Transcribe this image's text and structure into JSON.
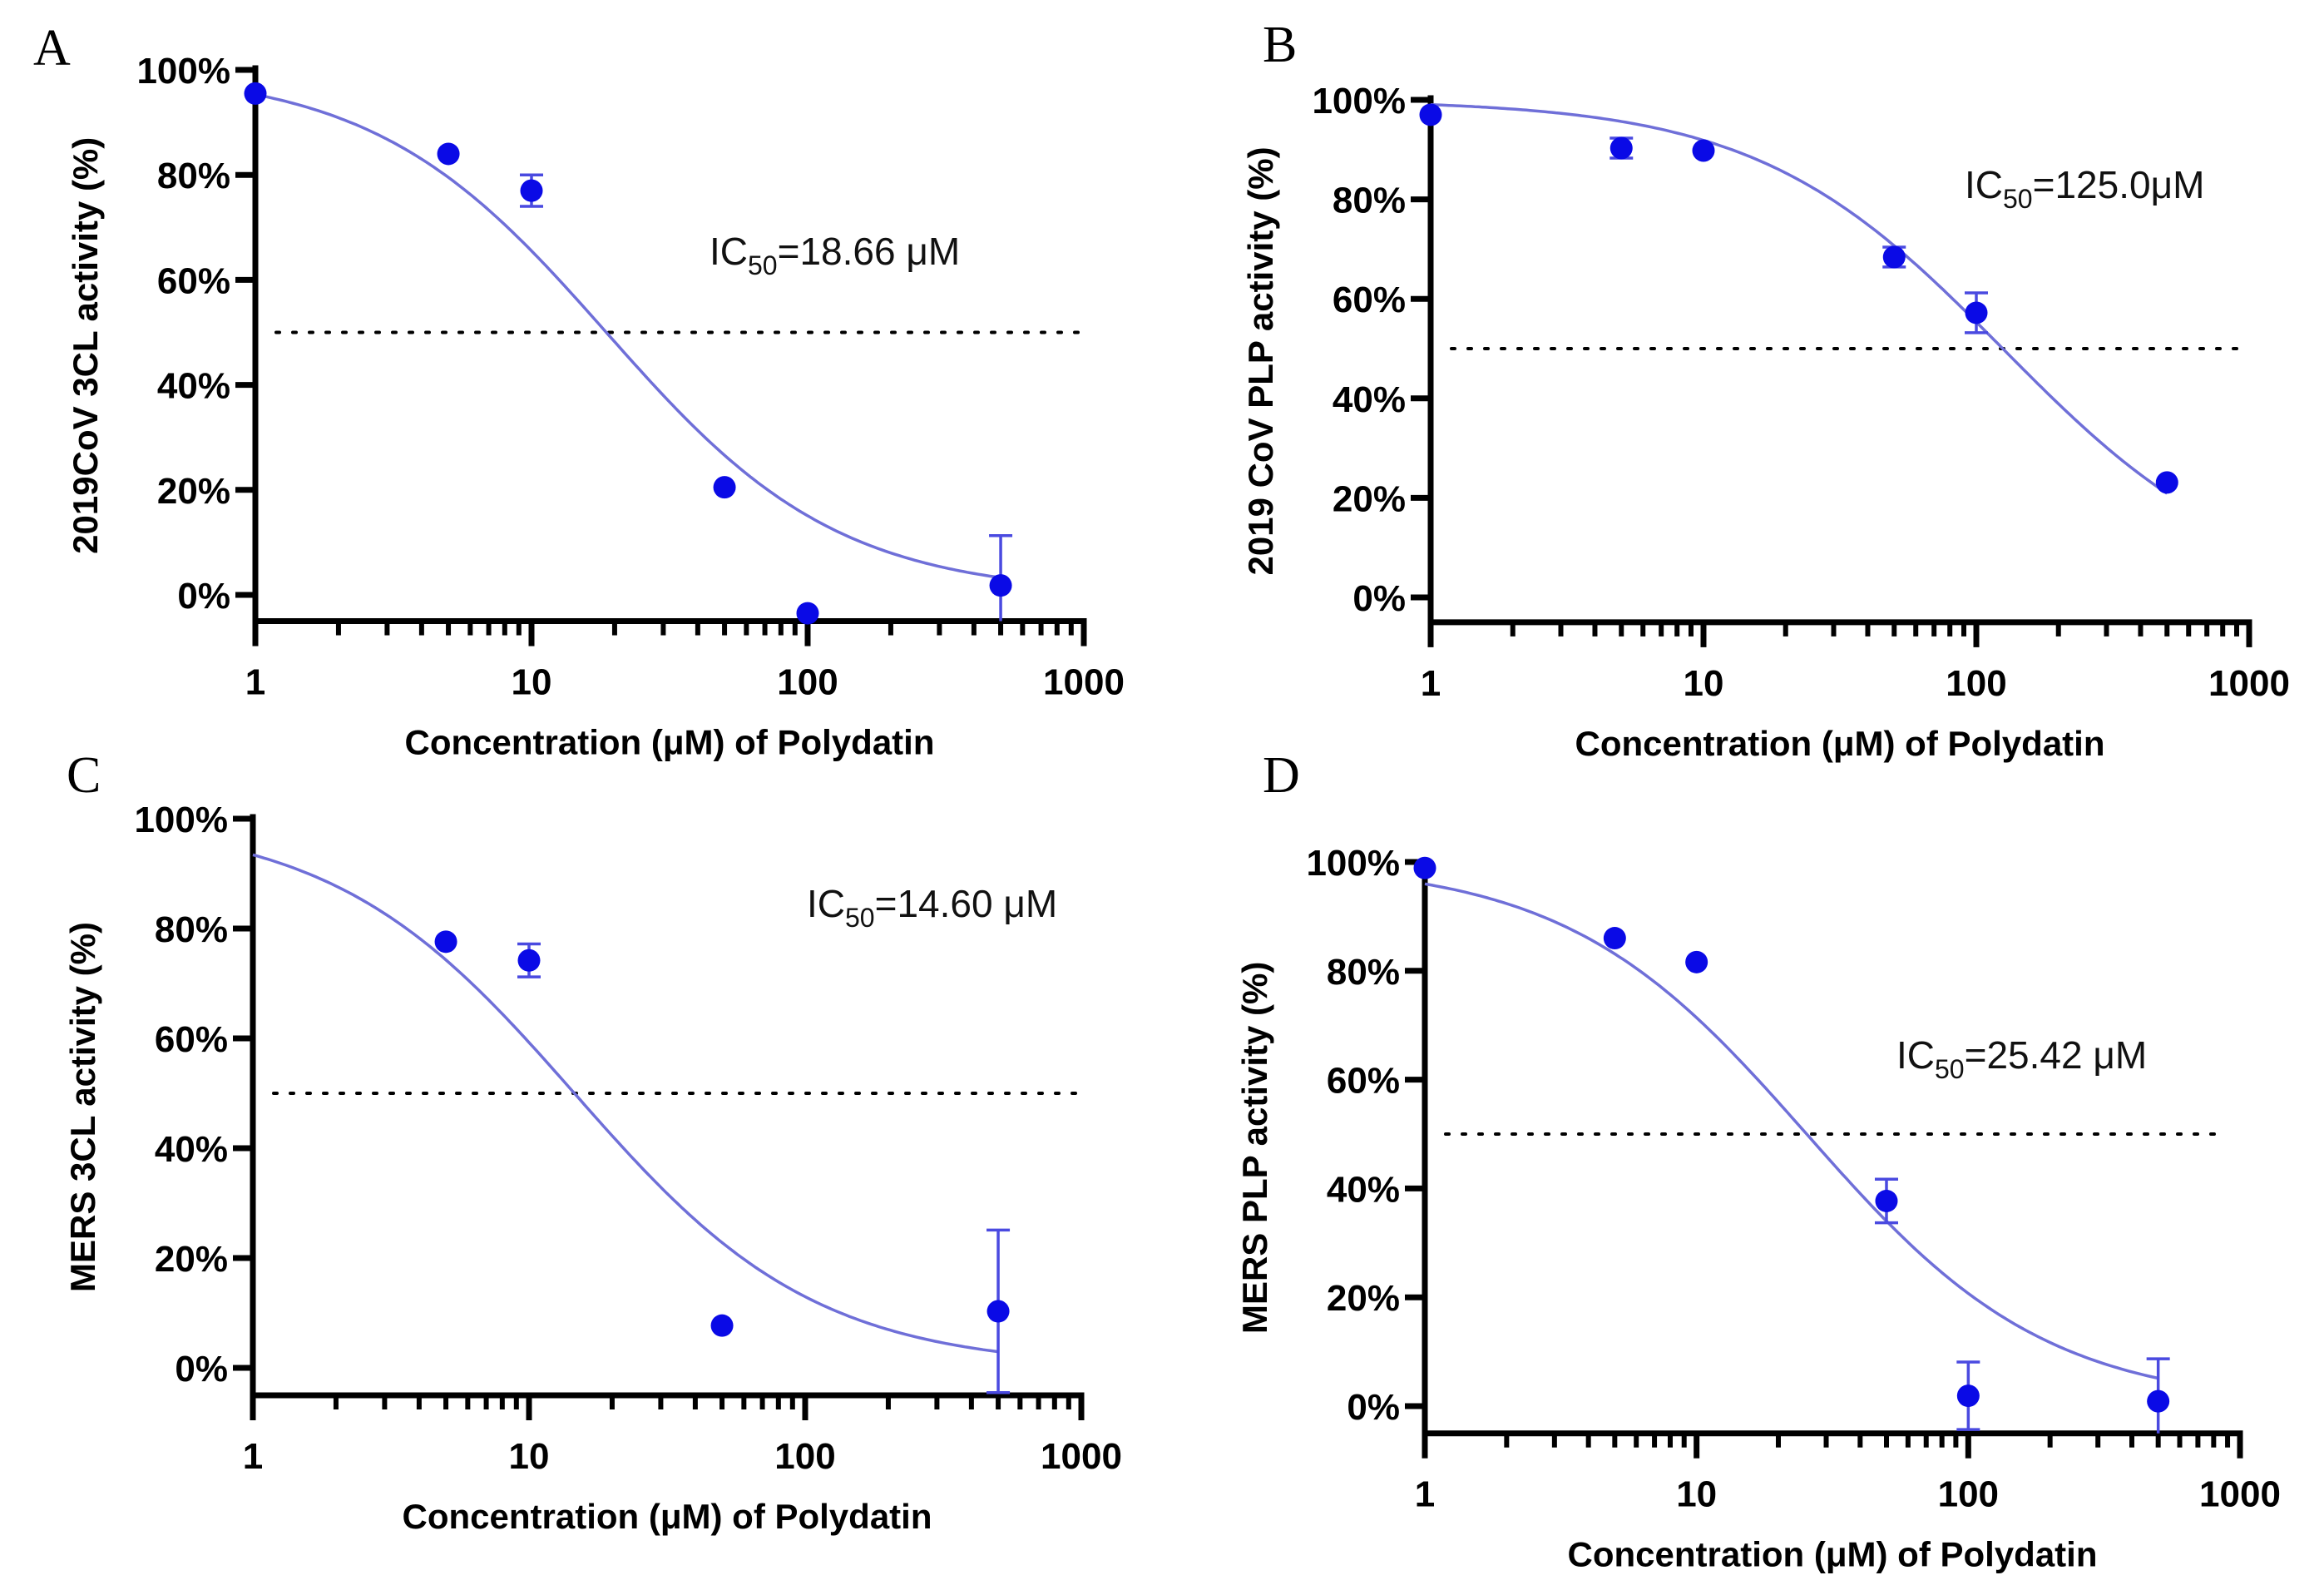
{
  "figure": {
    "panels": [
      {
        "id": "A",
        "letter": "A"
      },
      {
        "id": "B",
        "letter": "B"
      },
      {
        "id": "C",
        "letter": "C"
      },
      {
        "id": "D",
        "letter": "D"
      }
    ]
  },
  "colors": {
    "points": "#0a0ae6",
    "error_bars": "#4a4ae0",
    "fit_curve": "#6f6fd8",
    "axes": "#000000",
    "reference_line": "#000000"
  },
  "chart_data": [
    {
      "panel": "A",
      "type": "scatter",
      "title": "",
      "xlabel": "Concentration (μM) of Polydatin",
      "ylabel": "2019CoV 3CL activity (%)",
      "xscale": "log",
      "xlim": [
        1,
        1000
      ],
      "ylim": [
        -5,
        100
      ],
      "x_ticks": [
        1,
        10,
        100,
        1000
      ],
      "x_tick_labels": [
        "1",
        "10",
        "100",
        "1000"
      ],
      "y_ticks": [
        0,
        20,
        40,
        60,
        80,
        100
      ],
      "y_tick_labels": [
        "0%",
        "20%",
        "40%",
        "60%",
        "80%",
        "100%"
      ],
      "grid": false,
      "reference_line_y": 50,
      "annotation": {
        "prefix": "IC",
        "subscript": "50",
        "suffix": "=18.66 μM"
      },
      "ic50": 18.66,
      "fit": {
        "top": 100,
        "bottom": 0,
        "ic50": 18.66,
        "hill_slope": 1.03,
        "x_range": [
          1,
          500
        ]
      },
      "points": [
        {
          "x": 1,
          "y": 95.5,
          "err": 0
        },
        {
          "x": 5,
          "y": 84,
          "err": 0
        },
        {
          "x": 10,
          "y": 77,
          "err": 3
        },
        {
          "x": 50,
          "y": 20.5,
          "err": 0
        },
        {
          "x": 100,
          "y": -3.5,
          "err": 0
        },
        {
          "x": 500,
          "y": 1.8,
          "err": 9.5
        }
      ]
    },
    {
      "panel": "B",
      "type": "scatter",
      "title": "",
      "xlabel": "Concentration (μM) of Polydatin",
      "ylabel": "2019 CoV PLP activity (%)",
      "xscale": "log",
      "xlim": [
        1,
        1000
      ],
      "ylim": [
        -5,
        100
      ],
      "x_ticks": [
        1,
        10,
        100,
        1000
      ],
      "x_tick_labels": [
        "1",
        "10",
        "100",
        "1000"
      ],
      "y_ticks": [
        0,
        20,
        40,
        60,
        80,
        100
      ],
      "y_tick_labels": [
        "0%",
        "20%",
        "40%",
        "60%",
        "80%",
        "100%"
      ],
      "grid": false,
      "reference_line_y": 50,
      "annotation": {
        "prefix": "IC",
        "subscript": "50",
        "suffix": "=125.0μM"
      },
      "ic50": 125.0,
      "fit": {
        "top": 100,
        "bottom": 0,
        "ic50": 125.0,
        "hill_slope": 0.96,
        "x_range": [
          1,
          500
        ]
      },
      "points": [
        {
          "x": 1,
          "y": 97,
          "err": 0
        },
        {
          "x": 5,
          "y": 90.3,
          "err": 2
        },
        {
          "x": 10,
          "y": 89.8,
          "err": 0
        },
        {
          "x": 50,
          "y": 68.4,
          "err": 2
        },
        {
          "x": 100,
          "y": 57.2,
          "err": 4
        },
        {
          "x": 500,
          "y": 23.1,
          "err": 0
        }
      ]
    },
    {
      "panel": "C",
      "type": "scatter",
      "title": "",
      "xlabel": "Concentration (μM) of Polydatin",
      "ylabel": "MERS 3CL activity (%)",
      "xscale": "log",
      "xlim": [
        1,
        1000
      ],
      "ylim": [
        -5,
        100
      ],
      "x_ticks": [
        1,
        10,
        100,
        1000
      ],
      "x_tick_labels": [
        "1",
        "10",
        "100",
        "1000"
      ],
      "y_ticks": [
        0,
        20,
        40,
        60,
        80,
        100
      ],
      "y_tick_labels": [
        "0%",
        "20%",
        "40%",
        "60%",
        "80%",
        "100%"
      ],
      "grid": false,
      "reference_line_y": 50,
      "annotation": {
        "prefix": "IC",
        "subscript": "50",
        "suffix": "=14.60 μM"
      },
      "ic50": 14.6,
      "fit": {
        "top": 100,
        "bottom": 0,
        "ic50": 14.6,
        "hill_slope": 0.99,
        "x_range": [
          1,
          500
        ]
      },
      "points": [
        {
          "x": 5,
          "y": 77.6,
          "err": 0
        },
        {
          "x": 10,
          "y": 74.2,
          "err": 3
        },
        {
          "x": 50,
          "y": 7.7,
          "err": 0
        },
        {
          "x": 500,
          "y": 10.3,
          "err": 14.8
        }
      ]
    },
    {
      "panel": "D",
      "type": "scatter",
      "title": "",
      "xlabel": "Concentration (μM) of Polydatin",
      "ylabel": "MERS PLP activity (%)",
      "xscale": "log",
      "xlim": [
        1,
        1000
      ],
      "ylim": [
        -5,
        100
      ],
      "x_ticks": [
        1,
        10,
        100,
        1000
      ],
      "x_tick_labels": [
        "1",
        "10",
        "100",
        "1000"
      ],
      "y_ticks": [
        0,
        20,
        40,
        60,
        80,
        100
      ],
      "y_tick_labels": [
        "0%",
        "20%",
        "40%",
        "60%",
        "80%",
        "100%"
      ],
      "grid": false,
      "reference_line_y": 50,
      "annotation": {
        "prefix": "IC",
        "subscript": "50",
        "suffix": "=25.42 μM"
      },
      "ic50": 25.42,
      "fit": {
        "top": 100,
        "bottom": 0,
        "ic50": 25.42,
        "hill_slope": 0.98,
        "x_range": [
          1,
          500
        ]
      },
      "points": [
        {
          "x": 1,
          "y": 98.9,
          "err": 0
        },
        {
          "x": 5,
          "y": 86,
          "err": 0
        },
        {
          "x": 10,
          "y": 81.6,
          "err": 0
        },
        {
          "x": 50,
          "y": 37.7,
          "err": 4
        },
        {
          "x": 100,
          "y": 1.9,
          "err": 6.2
        },
        {
          "x": 500,
          "y": 0.9,
          "err": 7.8
        }
      ]
    }
  ]
}
